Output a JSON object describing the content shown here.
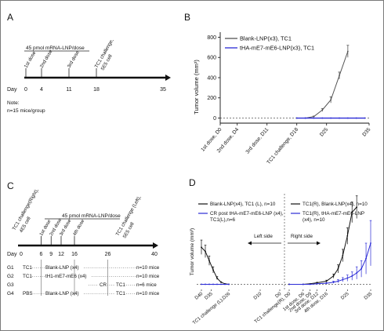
{
  "panels": {
    "A": {
      "letter": "A",
      "dose_label": "45 pmol mRNA-LNP/dose",
      "day_label": "Day",
      "events": [
        {
          "label": "1st dose",
          "day": 0
        },
        {
          "label": "2nd dose",
          "day": 4
        },
        {
          "label": "3rd dose",
          "day": 11
        },
        {
          "label": "TC1 challenge,",
          "label2": "5E5 cell",
          "day": 18
        }
      ],
      "ticks": [
        "0",
        "4",
        "11",
        "18",
        "35"
      ],
      "note": "Note:",
      "note2": "n=15 mice/group"
    },
    "B": {
      "letter": "B",
      "ylabel": "Tumor volume (mm³)",
      "y_ticks": [
        "0",
        "200",
        "400",
        "600",
        "800"
      ],
      "x_ticks": [
        "1st dose, D0",
        "2nd dose, D4",
        "3rd dose, D11",
        "TC1 challenge, D18",
        "D25",
        "D35"
      ],
      "legend": [
        {
          "text": "Blank-LNP(x3), TC1",
          "color": "#555555"
        },
        {
          "text": "tHA-mE7-mE6-LNP(x3), TC1",
          "color": "#2b2bd6"
        }
      ]
    },
    "C": {
      "letter": "C",
      "challenge_right": "TC1 challenge(Right),",
      "challenge_right2": "4E5 cell",
      "dose_label": "45 pmol mRNA-LNP/dose",
      "dose_events": [
        "1st dose",
        "2nd dose",
        "3rd dose",
        "4th dose"
      ],
      "challenge_left": "TC1 challenge (Left),",
      "challenge_left2": "5E5 cell",
      "day_label": "Day",
      "ticks": [
        "0",
        "6",
        "9",
        "12",
        "16",
        "26",
        "40"
      ],
      "groups": [
        {
          "id": "G1",
          "c1": "TC1",
          "treat": "Blank-LNP (x4)",
          "c2": "",
          "n": "n=10 mice"
        },
        {
          "id": "G2",
          "c1": "TC1",
          "treat": "tH1-mE7-mE6 (x4)",
          "c2": "",
          "n": "n=10 mice"
        },
        {
          "id": "G3",
          "c1": "",
          "treat": "",
          "cr": "CR",
          "c2": "TC1",
          "n": "n=6 mice"
        },
        {
          "id": "G4",
          "c1": "PBS",
          "treat": "Blank-LNP (x4)",
          "c2": "TC1",
          "n": "n=10 mice"
        }
      ]
    },
    "D": {
      "letter": "D",
      "ylabel": "Tumor volume (mm³)",
      "left_side": "Left side",
      "right_side": "Right side",
      "legend": [
        {
          "text": "Blank-LNP(x4), TC1 (L), n=10",
          "color": "#111111"
        },
        {
          "text": "CR post tHA-mE7-mE6-LNP (x4), TC1(L),n=6",
          "color": "#2b2bd6"
        },
        {
          "text": "TC1(R), Blank-LNP(x4), n=10",
          "color": "#111111"
        },
        {
          "text": "TC1(R), tHA-mE7-mE6-LNP (x4), n=10",
          "color": "#2b2bd6"
        }
      ],
      "x_ticks": [
        "D40",
        "D35",
        "TC1 challenge (L),D26",
        "D10",
        "D0",
        "TC1 challenge(R), D0",
        "1st dose, D6",
        "2nd dose, D9",
        "3rd dose, D12",
        "4th dose, D16",
        "D25",
        "D35"
      ]
    }
  },
  "chart_data": [
    {
      "type": "line",
      "panel": "B",
      "ylabel": "Tumor volume (mm³)",
      "ylim": [
        -50,
        850
      ],
      "xlim": [
        0,
        35
      ],
      "y_ticks": [
        0,
        200,
        400,
        600,
        800
      ],
      "x_tick_positions": [
        0,
        4,
        11,
        18,
        25,
        35
      ],
      "x_tick_labels": [
        "1st dose, D0",
        "2nd dose, D4",
        "3rd dose, D11",
        "TC1 challenge, D18",
        "D25",
        "D35"
      ],
      "baseline": 0,
      "series": [
        {
          "name": "Blank-LNP(x3), TC1",
          "color": "#555555",
          "x": [
            18,
            20,
            22,
            24,
            26,
            28,
            30
          ],
          "y": [
            0,
            0,
            15,
            80,
            180,
            420,
            660
          ],
          "err": [
            0,
            0,
            5,
            15,
            30,
            35,
            60
          ]
        },
        {
          "name": "tHA-mE7-mE6-LNP(x3), TC1",
          "color": "#2b2bd6",
          "x": [
            18,
            20,
            22,
            24,
            26,
            28,
            30,
            32,
            34
          ],
          "y": [
            0,
            0,
            0,
            0,
            0,
            0,
            0,
            0,
            0
          ]
        }
      ]
    },
    {
      "type": "line",
      "panel": "D",
      "ylabel": "Tumor volume (mm³)",
      "note": "Left side: x = days after left TC1 challenge, axis reversed; Right side: x = days after right TC1 challenge",
      "left": {
        "xlim": [
          40,
          0
        ],
        "series": [
          {
            "name": "Blank-LNP(x4), TC1 (L), n=10",
            "color": "#111111",
            "x": [
              40,
              38,
              36,
              34,
              32,
              30,
              28,
              26
            ],
            "y": [
              360,
              320,
              230,
              140,
              60,
              20,
              5,
              0
            ],
            "err": [
              70,
              60,
              45,
              30,
              15,
              5,
              0,
              0
            ]
          },
          {
            "name": "CR post tHA-mE7-mE6-LNP (x4), TC1(L),n=6",
            "color": "#2b2bd6",
            "x": [
              40,
              38,
              36,
              34,
              32,
              30,
              28,
              26
            ],
            "y": [
              0,
              0,
              0,
              0,
              0,
              0,
              0,
              0
            ]
          }
        ]
      },
      "right": {
        "xlim": [
          0,
          35
        ],
        "series": [
          {
            "name": "TC1(R), Blank-LNP(x4), n=10",
            "color": "#111111",
            "x": [
              0,
              6,
              9,
              12,
              16,
              19,
              21,
              23,
              25,
              27,
              29
            ],
            "y": [
              0,
              0,
              5,
              15,
              30,
              80,
              150,
              280,
              470,
              700,
              750
            ],
            "err": [
              0,
              0,
              0,
              5,
              10,
              20,
              40,
              60,
              80,
              100,
              110
            ]
          },
          {
            "name": "TC1(R), tHA-mE7-mE6-LNP (x4), n=10",
            "color": "#2b2bd6",
            "x": [
              0,
              6,
              9,
              12,
              16,
              19,
              21,
              23,
              25,
              27,
              29,
              31,
              33,
              35
            ],
            "y": [
              0,
              0,
              0,
              5,
              10,
              20,
              30,
              45,
              60,
              80,
              110,
              150,
              250,
              400
            ],
            "err": [
              0,
              0,
              0,
              0,
              5,
              10,
              15,
              20,
              30,
              40,
              60,
              80,
              150,
              220
            ]
          }
        ]
      },
      "ylim": [
        -50,
        850
      ],
      "baseline": 0
    }
  ]
}
